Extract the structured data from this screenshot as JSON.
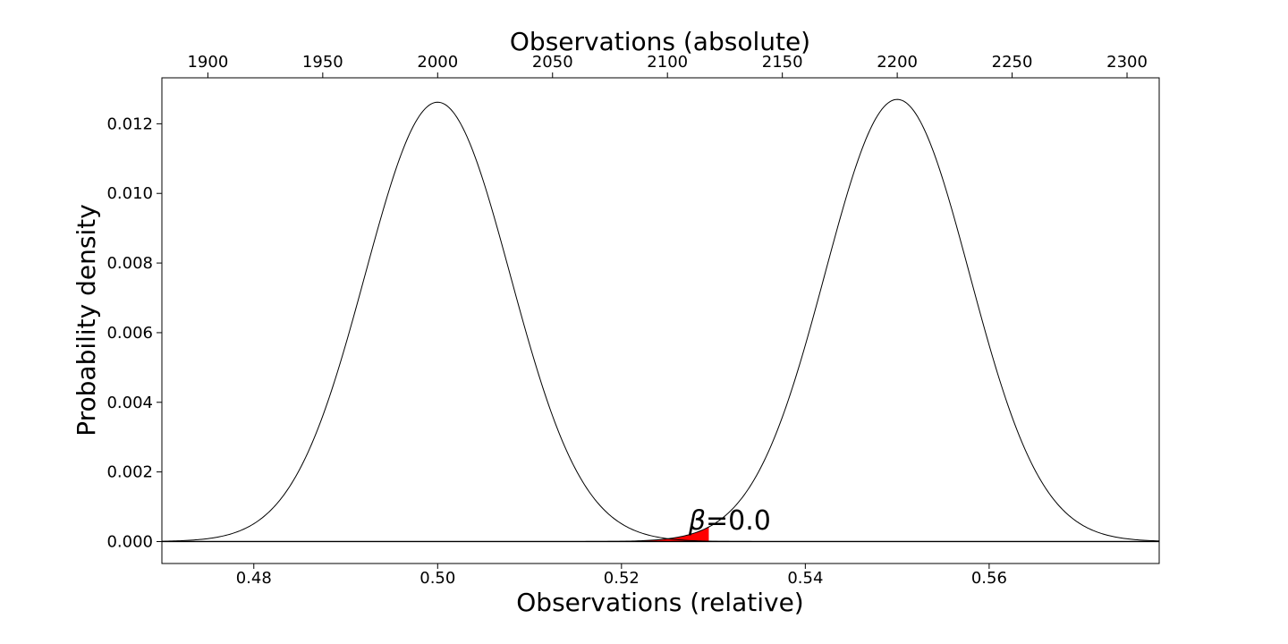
{
  "chart_data": {
    "type": "line",
    "title": "",
    "xlabel_bottom": "Observations (relative)",
    "xlabel_top": "Observations (absolute)",
    "ylabel": "Probability density",
    "xlim": [
      0.47,
      0.5785
    ],
    "ylim": [
      -0.00063,
      0.01332
    ],
    "x_ticks_bottom": [
      0.48,
      0.5,
      0.52,
      0.54,
      0.56
    ],
    "x_tick_labels_bottom": [
      "0.48",
      "0.50",
      "0.52",
      "0.54",
      "0.56"
    ],
    "x_ticks_top": [
      1900,
      1950,
      2000,
      2050,
      2100,
      2150,
      2200,
      2250,
      2300
    ],
    "x_tick_labels_top": [
      "1900",
      "1950",
      "2000",
      "2050",
      "2100",
      "2150",
      "2200",
      "2250",
      "2300"
    ],
    "top_axis_scale": 4000,
    "y_ticks": [
      0.0,
      0.002,
      0.004,
      0.006,
      0.008,
      0.01,
      0.012
    ],
    "y_tick_labels": [
      "0.000",
      "0.002",
      "0.004",
      "0.006",
      "0.008",
      "0.010",
      "0.012"
    ],
    "series": [
      {
        "mean_absolute": 2000,
        "sd_absolute": 31.6,
        "peak_density": 0.01262
      },
      {
        "mean_absolute": 2200,
        "sd_absolute": 31.4,
        "peak_density": 0.0127
      }
    ],
    "shaded_region": {
      "x_start": 0.5222,
      "x_end": 0.5295,
      "color": "#ff0000"
    },
    "annotation": {
      "prefix": "β",
      "text": "=0.0",
      "x": 0.5273,
      "y": 0.0006
    },
    "grid": false,
    "legend": "none",
    "line_color": "#000000"
  }
}
